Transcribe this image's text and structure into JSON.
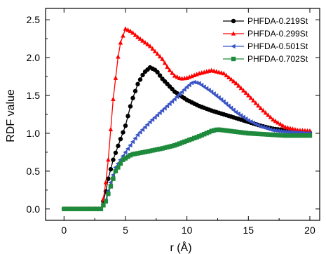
{
  "chart_data": {
    "type": "line",
    "title": "",
    "xlabel": "r (Å)",
    "ylabel": "RDF value",
    "xlim": [
      -1.5,
      20.8
    ],
    "ylim": [
      -0.15,
      2.65
    ],
    "xticks": [
      0,
      5,
      10,
      15,
      20
    ],
    "yticks": [
      0.0,
      0.5,
      1.0,
      1.5,
      2.0,
      2.5
    ],
    "xtick_labels": [
      "0",
      "5",
      "10",
      "15",
      "20"
    ],
    "ytick_labels": [
      "0.0",
      "0.5",
      "1.0",
      "1.5",
      "2.0",
      "2.5"
    ],
    "grid": false,
    "legend_position": "top-right",
    "series": [
      {
        "name": "PHFDA-0.219St",
        "color": "#000000",
        "marker": "circle",
        "points": [
          [
            0,
            0
          ],
          [
            3,
            0
          ],
          [
            3.3,
            0.15
          ],
          [
            3.6,
            0.4
          ],
          [
            4,
            0.65
          ],
          [
            4.5,
            0.88
          ],
          [
            5,
            1.1
          ],
          [
            5.5,
            1.42
          ],
          [
            6,
            1.65
          ],
          [
            6.5,
            1.8
          ],
          [
            7,
            1.87
          ],
          [
            7.5,
            1.83
          ],
          [
            8,
            1.72
          ],
          [
            9,
            1.55
          ],
          [
            10,
            1.44
          ],
          [
            11,
            1.36
          ],
          [
            12,
            1.3
          ],
          [
            13,
            1.25
          ],
          [
            14,
            1.2
          ],
          [
            15,
            1.15
          ],
          [
            16,
            1.1
          ],
          [
            17,
            1.06
          ],
          [
            18,
            1.04
          ],
          [
            19,
            1.02
          ],
          [
            20,
            1.01
          ]
        ]
      },
      {
        "name": "PHFDA-0.299St",
        "color": "#ff0000",
        "marker": "triangle-up",
        "points": [
          [
            0,
            0
          ],
          [
            3,
            0
          ],
          [
            3.3,
            0.2
          ],
          [
            3.6,
            0.65
          ],
          [
            4,
            1.45
          ],
          [
            4.5,
            2.15
          ],
          [
            5,
            2.38
          ],
          [
            5.5,
            2.34
          ],
          [
            6,
            2.27
          ],
          [
            7,
            2.15
          ],
          [
            8,
            1.98
          ],
          [
            8.5,
            1.85
          ],
          [
            9,
            1.76
          ],
          [
            9.5,
            1.72
          ],
          [
            10,
            1.73
          ],
          [
            11,
            1.79
          ],
          [
            12,
            1.83
          ],
          [
            13,
            1.79
          ],
          [
            14,
            1.66
          ],
          [
            15,
            1.5
          ],
          [
            16,
            1.33
          ],
          [
            17,
            1.18
          ],
          [
            18,
            1.08
          ],
          [
            19,
            1.04
          ],
          [
            20,
            1.03
          ]
        ]
      },
      {
        "name": "PHFDA-0.501St",
        "color": "#3a53c6",
        "marker": "triangle-left",
        "points": [
          [
            0,
            0
          ],
          [
            3,
            0
          ],
          [
            3.4,
            0.12
          ],
          [
            3.8,
            0.35
          ],
          [
            4.2,
            0.55
          ],
          [
            5,
            0.75
          ],
          [
            6,
            0.98
          ],
          [
            7,
            1.15
          ],
          [
            8,
            1.3
          ],
          [
            9,
            1.45
          ],
          [
            10,
            1.61
          ],
          [
            10.5,
            1.68
          ],
          [
            11,
            1.66
          ],
          [
            12,
            1.55
          ],
          [
            13,
            1.42
          ],
          [
            14,
            1.28
          ],
          [
            15,
            1.17
          ],
          [
            16,
            1.09
          ],
          [
            17,
            1.04
          ],
          [
            18,
            1.02
          ],
          [
            19,
            1.01
          ],
          [
            20,
            1.0
          ]
        ]
      },
      {
        "name": "PHFDA-0.702St",
        "color": "#1e8a3c",
        "marker": "square",
        "points": [
          [
            0,
            0
          ],
          [
            3,
            0
          ],
          [
            3.4,
            0.1
          ],
          [
            3.8,
            0.3
          ],
          [
            4.2,
            0.5
          ],
          [
            4.8,
            0.65
          ],
          [
            5.5,
            0.72
          ],
          [
            6.5,
            0.75
          ],
          [
            8,
            0.8
          ],
          [
            9,
            0.84
          ],
          [
            10,
            0.9
          ],
          [
            11,
            0.96
          ],
          [
            12,
            1.03
          ],
          [
            12.5,
            1.05
          ],
          [
            13,
            1.04
          ],
          [
            14,
            1.02
          ],
          [
            15,
            1.0
          ],
          [
            16,
            0.99
          ],
          [
            17,
            0.98
          ],
          [
            18,
            0.97
          ],
          [
            19,
            0.97
          ],
          [
            20,
            0.97
          ]
        ]
      }
    ]
  }
}
